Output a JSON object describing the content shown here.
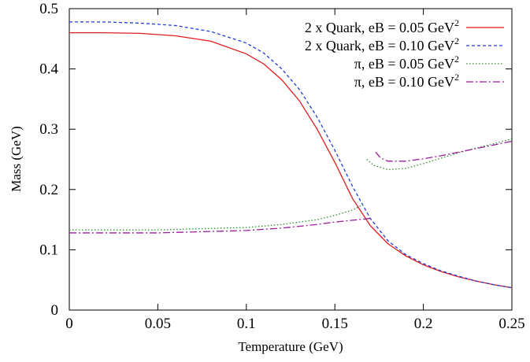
{
  "chart_data": {
    "type": "line",
    "title": "",
    "xlabel": "Temperature (GeV)",
    "ylabel": "Mass (GeV)",
    "xlim": [
      0,
      0.25
    ],
    "ylim": [
      0,
      0.5
    ],
    "x_ticks": [
      "0",
      "0.05",
      "0.1",
      "0.15",
      "0.2",
      "0.25"
    ],
    "y_ticks": [
      "0",
      "0.1",
      "0.2",
      "0.3",
      "0.4",
      "0.5"
    ],
    "grid": false,
    "legend_position": "top-right",
    "series": [
      {
        "name": "2 x Quark, eB = 0.05 GeV²",
        "label_main": "2 x Quark, eB = 0.05 GeV",
        "label_sup": "2",
        "color": "#e41a1c",
        "dash": "solid",
        "segments": [
          [
            [
              0,
              0.46
            ],
            [
              0.02,
              0.46
            ],
            [
              0.04,
              0.459
            ],
            [
              0.06,
              0.455
            ],
            [
              0.08,
              0.446
            ],
            [
              0.1,
              0.425
            ],
            [
              0.11,
              0.408
            ],
            [
              0.12,
              0.382
            ],
            [
              0.13,
              0.347
            ],
            [
              0.14,
              0.3
            ],
            [
              0.15,
              0.245
            ],
            [
              0.16,
              0.185
            ],
            [
              0.17,
              0.14
            ],
            [
              0.18,
              0.11
            ],
            [
              0.19,
              0.09
            ],
            [
              0.2,
              0.075
            ],
            [
              0.21,
              0.064
            ],
            [
              0.22,
              0.055
            ],
            [
              0.23,
              0.048
            ],
            [
              0.24,
              0.042
            ],
            [
              0.25,
              0.037
            ]
          ]
        ]
      },
      {
        "name": "2 x Quark, eB = 0.10 GeV²",
        "label_main": "2 x Quark, eB = 0.10 GeV",
        "label_sup": "2",
        "color": "#1f3fd6",
        "dash": "dashed",
        "segments": [
          [
            [
              0,
              0.478
            ],
            [
              0.02,
              0.478
            ],
            [
              0.04,
              0.476
            ],
            [
              0.06,
              0.472
            ],
            [
              0.08,
              0.462
            ],
            [
              0.1,
              0.443
            ],
            [
              0.11,
              0.426
            ],
            [
              0.12,
              0.4
            ],
            [
              0.13,
              0.366
            ],
            [
              0.14,
              0.32
            ],
            [
              0.15,
              0.265
            ],
            [
              0.16,
              0.205
            ],
            [
              0.17,
              0.152
            ],
            [
              0.18,
              0.115
            ],
            [
              0.19,
              0.092
            ],
            [
              0.2,
              0.077
            ],
            [
              0.21,
              0.065
            ],
            [
              0.22,
              0.056
            ],
            [
              0.23,
              0.048
            ],
            [
              0.24,
              0.042
            ],
            [
              0.25,
              0.037
            ]
          ]
        ]
      },
      {
        "name": "π, eB = 0.05 GeV²",
        "label_main": "π, eB = 0.05 GeV",
        "label_sup": "2",
        "color": "#2e8b2e",
        "dash": "dotted",
        "segments": [
          [
            [
              0,
              0.133
            ],
            [
              0.05,
              0.133
            ],
            [
              0.1,
              0.137
            ],
            [
              0.12,
              0.142
            ],
            [
              0.14,
              0.15
            ],
            [
              0.15,
              0.157
            ],
            [
              0.16,
              0.166
            ],
            [
              0.166,
              0.175
            ]
          ],
          [
            [
              0.168,
              0.25
            ],
            [
              0.172,
              0.24
            ],
            [
              0.18,
              0.233
            ],
            [
              0.19,
              0.235
            ],
            [
              0.2,
              0.243
            ],
            [
              0.21,
              0.252
            ],
            [
              0.22,
              0.261
            ],
            [
              0.23,
              0.269
            ],
            [
              0.24,
              0.276
            ],
            [
              0.25,
              0.284
            ]
          ]
        ]
      },
      {
        "name": "π, eB = 0.10 GeV²",
        "label_main": "π, eB = 0.10 GeV",
        "label_sup": "2",
        "color": "#9b1f9b",
        "dash": "dashdot",
        "segments": [
          [
            [
              0,
              0.128
            ],
            [
              0.05,
              0.128
            ],
            [
              0.1,
              0.132
            ],
            [
              0.12,
              0.136
            ],
            [
              0.14,
              0.142
            ],
            [
              0.15,
              0.146
            ],
            [
              0.16,
              0.149
            ],
            [
              0.17,
              0.152
            ]
          ],
          [
            [
              0.173,
              0.262
            ],
            [
              0.176,
              0.252
            ],
            [
              0.18,
              0.247
            ],
            [
              0.19,
              0.247
            ],
            [
              0.2,
              0.251
            ],
            [
              0.21,
              0.256
            ],
            [
              0.22,
              0.262
            ],
            [
              0.23,
              0.268
            ],
            [
              0.24,
              0.274
            ],
            [
              0.25,
              0.28
            ]
          ]
        ]
      }
    ]
  }
}
